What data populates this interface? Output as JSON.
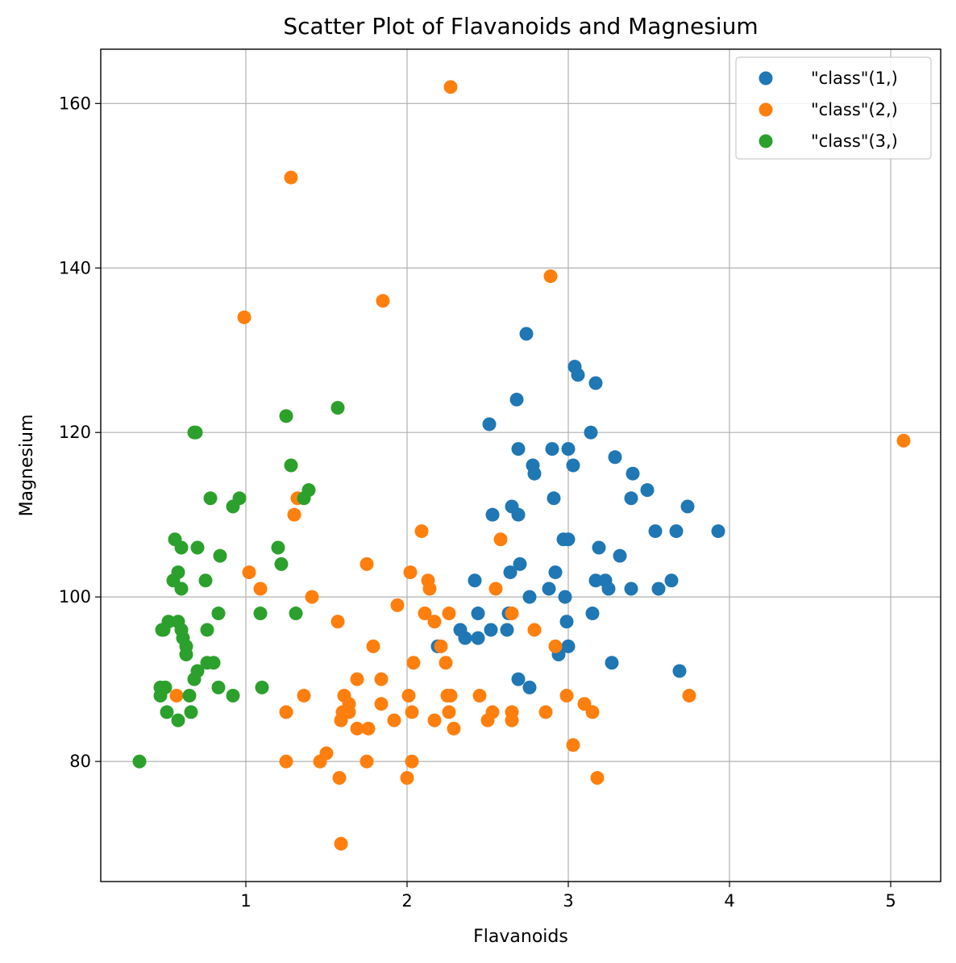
{
  "chart_data": {
    "type": "scatter",
    "title": "Scatter Plot of Flavanoids and Magnesium",
    "xlabel": "Flavanoids",
    "ylabel": "Magnesium",
    "xlim": [
      0.1,
      5.31
    ],
    "ylim": [
      65.4,
      166.6
    ],
    "xticks": [
      1,
      2,
      3,
      4,
      5
    ],
    "yticks": [
      80,
      100,
      120,
      140,
      160
    ],
    "grid": true,
    "legend_position": "top-right",
    "series": [
      {
        "name": "\"class\"(1,)",
        "color": "#1f77b4",
        "points": [
          [
            2.51,
            121
          ],
          [
            2.53,
            110
          ],
          [
            2.42,
            102
          ],
          [
            2.44,
            98
          ],
          [
            2.33,
            96
          ],
          [
            2.36,
            95
          ],
          [
            2.44,
            95
          ],
          [
            2.52,
            96
          ],
          [
            2.62,
            96
          ],
          [
            2.64,
            103
          ],
          [
            2.65,
            111
          ],
          [
            2.68,
            124
          ],
          [
            2.69,
            118
          ],
          [
            2.69,
            110
          ],
          [
            2.7,
            104
          ],
          [
            2.74,
            132
          ],
          [
            2.76,
            100
          ],
          [
            2.78,
            116
          ],
          [
            2.79,
            115
          ],
          [
            2.69,
            90
          ],
          [
            2.76,
            89
          ],
          [
            2.88,
            101
          ],
          [
            2.9,
            118
          ],
          [
            2.91,
            112
          ],
          [
            2.92,
            103
          ],
          [
            2.94,
            93
          ],
          [
            2.97,
            107
          ],
          [
            2.98,
            100
          ],
          [
            2.99,
            97
          ],
          [
            3.0,
            118
          ],
          [
            3.0,
            107
          ],
          [
            3.03,
            116
          ],
          [
            3.04,
            128
          ],
          [
            3.06,
            127
          ],
          [
            3.14,
            120
          ],
          [
            3.15,
            98
          ],
          [
            3.17,
            102
          ],
          [
            3.17,
            126
          ],
          [
            3.19,
            106
          ],
          [
            3.23,
            102
          ],
          [
            3.25,
            101
          ],
          [
            3.27,
            92
          ],
          [
            3.29,
            117
          ],
          [
            3.32,
            105
          ],
          [
            3.39,
            112
          ],
          [
            3.39,
            101
          ],
          [
            3.4,
            115
          ],
          [
            3.49,
            113
          ],
          [
            3.54,
            108
          ],
          [
            3.56,
            101
          ],
          [
            3.64,
            102
          ],
          [
            3.67,
            108
          ],
          [
            3.69,
            91
          ],
          [
            3.74,
            111
          ],
          [
            3.93,
            108
          ],
          [
            2.19,
            94
          ],
          [
            3.0,
            94
          ],
          [
            2.63,
            98
          ]
        ]
      },
      {
        "name": "\"class\"(2,)",
        "color": "#ff7f0e",
        "points": [
          [
            0.57,
            88
          ],
          [
            0.99,
            134
          ],
          [
            1.02,
            103
          ],
          [
            1.09,
            101
          ],
          [
            1.25,
            86
          ],
          [
            1.25,
            80
          ],
          [
            1.28,
            151
          ],
          [
            1.3,
            110
          ],
          [
            1.32,
            112
          ],
          [
            1.36,
            88
          ],
          [
            1.41,
            100
          ],
          [
            1.46,
            80
          ],
          [
            1.5,
            81
          ],
          [
            1.57,
            97
          ],
          [
            1.58,
            78
          ],
          [
            1.59,
            85
          ],
          [
            1.59,
            70
          ],
          [
            1.6,
            86
          ],
          [
            1.61,
            88
          ],
          [
            1.64,
            86
          ],
          [
            1.64,
            87
          ],
          [
            1.69,
            90
          ],
          [
            1.69,
            84
          ],
          [
            1.75,
            104
          ],
          [
            1.75,
            80
          ],
          [
            1.76,
            84
          ],
          [
            1.79,
            94
          ],
          [
            1.84,
            87
          ],
          [
            1.84,
            90
          ],
          [
            1.85,
            136
          ],
          [
            1.92,
            85
          ],
          [
            1.94,
            99
          ],
          [
            2.0,
            78
          ],
          [
            2.01,
            88
          ],
          [
            2.02,
            103
          ],
          [
            2.03,
            86
          ],
          [
            2.03,
            80
          ],
          [
            2.04,
            92
          ],
          [
            2.09,
            108
          ],
          [
            2.11,
            98
          ],
          [
            2.13,
            102
          ],
          [
            2.14,
            101
          ],
          [
            2.17,
            97
          ],
          [
            2.17,
            85
          ],
          [
            2.21,
            94
          ],
          [
            2.24,
            92
          ],
          [
            2.25,
            88
          ],
          [
            2.26,
            98
          ],
          [
            2.26,
            86
          ],
          [
            2.27,
            162
          ],
          [
            2.27,
            88
          ],
          [
            2.29,
            84
          ],
          [
            2.45,
            88
          ],
          [
            2.5,
            85
          ],
          [
            2.53,
            86
          ],
          [
            2.55,
            101
          ],
          [
            2.58,
            107
          ],
          [
            2.65,
            98
          ],
          [
            2.65,
            86
          ],
          [
            2.65,
            85
          ],
          [
            2.79,
            96
          ],
          [
            2.86,
            86
          ],
          [
            2.89,
            139
          ],
          [
            2.92,
            94
          ],
          [
            2.99,
            88
          ],
          [
            3.03,
            82
          ],
          [
            3.1,
            87
          ],
          [
            3.15,
            86
          ],
          [
            3.18,
            78
          ],
          [
            3.75,
            88
          ],
          [
            5.08,
            119
          ]
        ]
      },
      {
        "name": "\"class\"(3,)",
        "color": "#2ca02c",
        "points": [
          [
            0.34,
            80
          ],
          [
            0.47,
            89
          ],
          [
            0.47,
            88
          ],
          [
            0.48,
            96
          ],
          [
            0.49,
            96
          ],
          [
            0.5,
            89
          ],
          [
            0.51,
            86
          ],
          [
            0.52,
            97
          ],
          [
            0.55,
            102
          ],
          [
            0.56,
            107
          ],
          [
            0.58,
            103
          ],
          [
            0.58,
            97
          ],
          [
            0.58,
            85
          ],
          [
            0.6,
            106
          ],
          [
            0.6,
            101
          ],
          [
            0.6,
            96
          ],
          [
            0.61,
            95
          ],
          [
            0.63,
            93
          ],
          [
            0.63,
            94
          ],
          [
            0.65,
            88
          ],
          [
            0.66,
            86
          ],
          [
            0.68,
            90
          ],
          [
            0.68,
            120
          ],
          [
            0.69,
            120
          ],
          [
            0.7,
            91
          ],
          [
            0.7,
            106
          ],
          [
            0.75,
            102
          ],
          [
            0.76,
            96
          ],
          [
            0.76,
            92
          ],
          [
            0.78,
            112
          ],
          [
            0.8,
            92
          ],
          [
            0.83,
            98
          ],
          [
            0.83,
            89
          ],
          [
            0.84,
            105
          ],
          [
            0.92,
            111
          ],
          [
            0.92,
            88
          ],
          [
            0.96,
            112
          ],
          [
            1.09,
            98
          ],
          [
            1.1,
            89
          ],
          [
            1.2,
            106
          ],
          [
            1.22,
            104
          ],
          [
            1.25,
            122
          ],
          [
            1.28,
            116
          ],
          [
            1.31,
            98
          ],
          [
            1.36,
            112
          ],
          [
            1.39,
            113
          ],
          [
            1.57,
            123
          ]
        ]
      }
    ]
  }
}
